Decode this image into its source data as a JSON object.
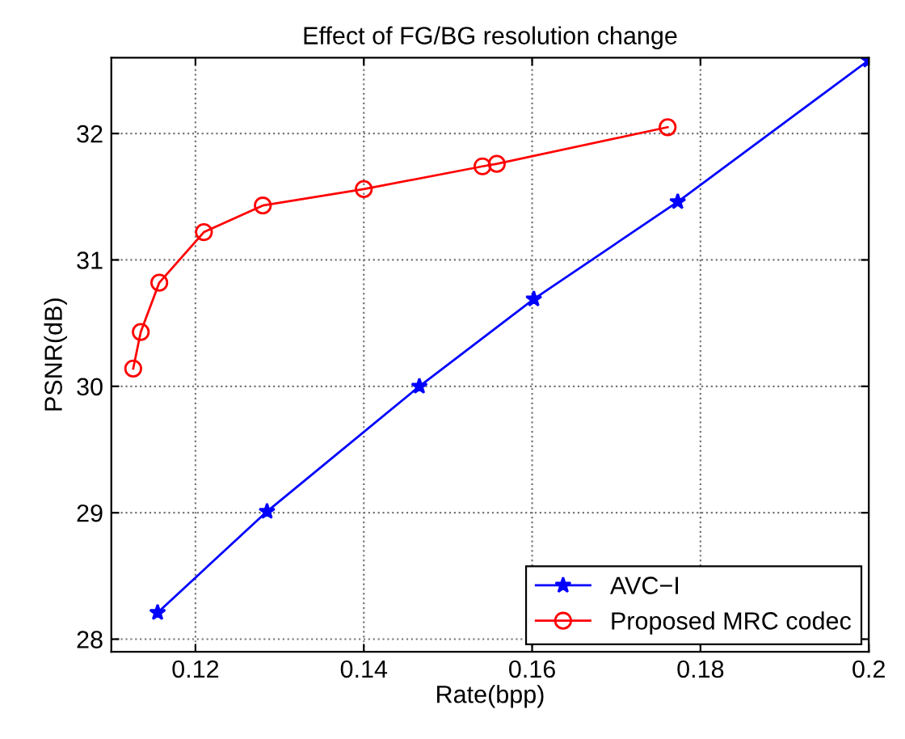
{
  "chart_data": {
    "type": "line",
    "title": "Effect of FG/BG resolution change",
    "xlabel": "Rate(bpp)",
    "ylabel": "PSNR(dB)",
    "xlim": [
      0.11,
      0.2
    ],
    "xticks": [
      0.12,
      0.14,
      0.16,
      0.18,
      0.2
    ],
    "ylim": [
      27.9,
      32.6
    ],
    "yticks": [
      28,
      29,
      30,
      31,
      32
    ],
    "grid": true,
    "legend": "bottom right",
    "line_style": "solid",
    "series": [
      {
        "name": "AVC−I",
        "color": "#0000ff",
        "marker": "star",
        "x": [
          0.1155,
          0.1285,
          0.1466,
          0.1602,
          0.1773,
          0.2
        ],
        "values": [
          28.21,
          29.01,
          30.0,
          30.69,
          31.46,
          32.58
        ]
      },
      {
        "name": "Proposed MRC codec",
        "color": "#ff0000",
        "marker": "circle",
        "x": [
          0.1126,
          0.1135,
          0.1157,
          0.121,
          0.128,
          0.14,
          0.1541,
          0.1558,
          0.1761
        ],
        "values": [
          30.14,
          30.43,
          30.82,
          31.22,
          31.43,
          31.56,
          31.74,
          31.76,
          32.05
        ]
      }
    ]
  }
}
